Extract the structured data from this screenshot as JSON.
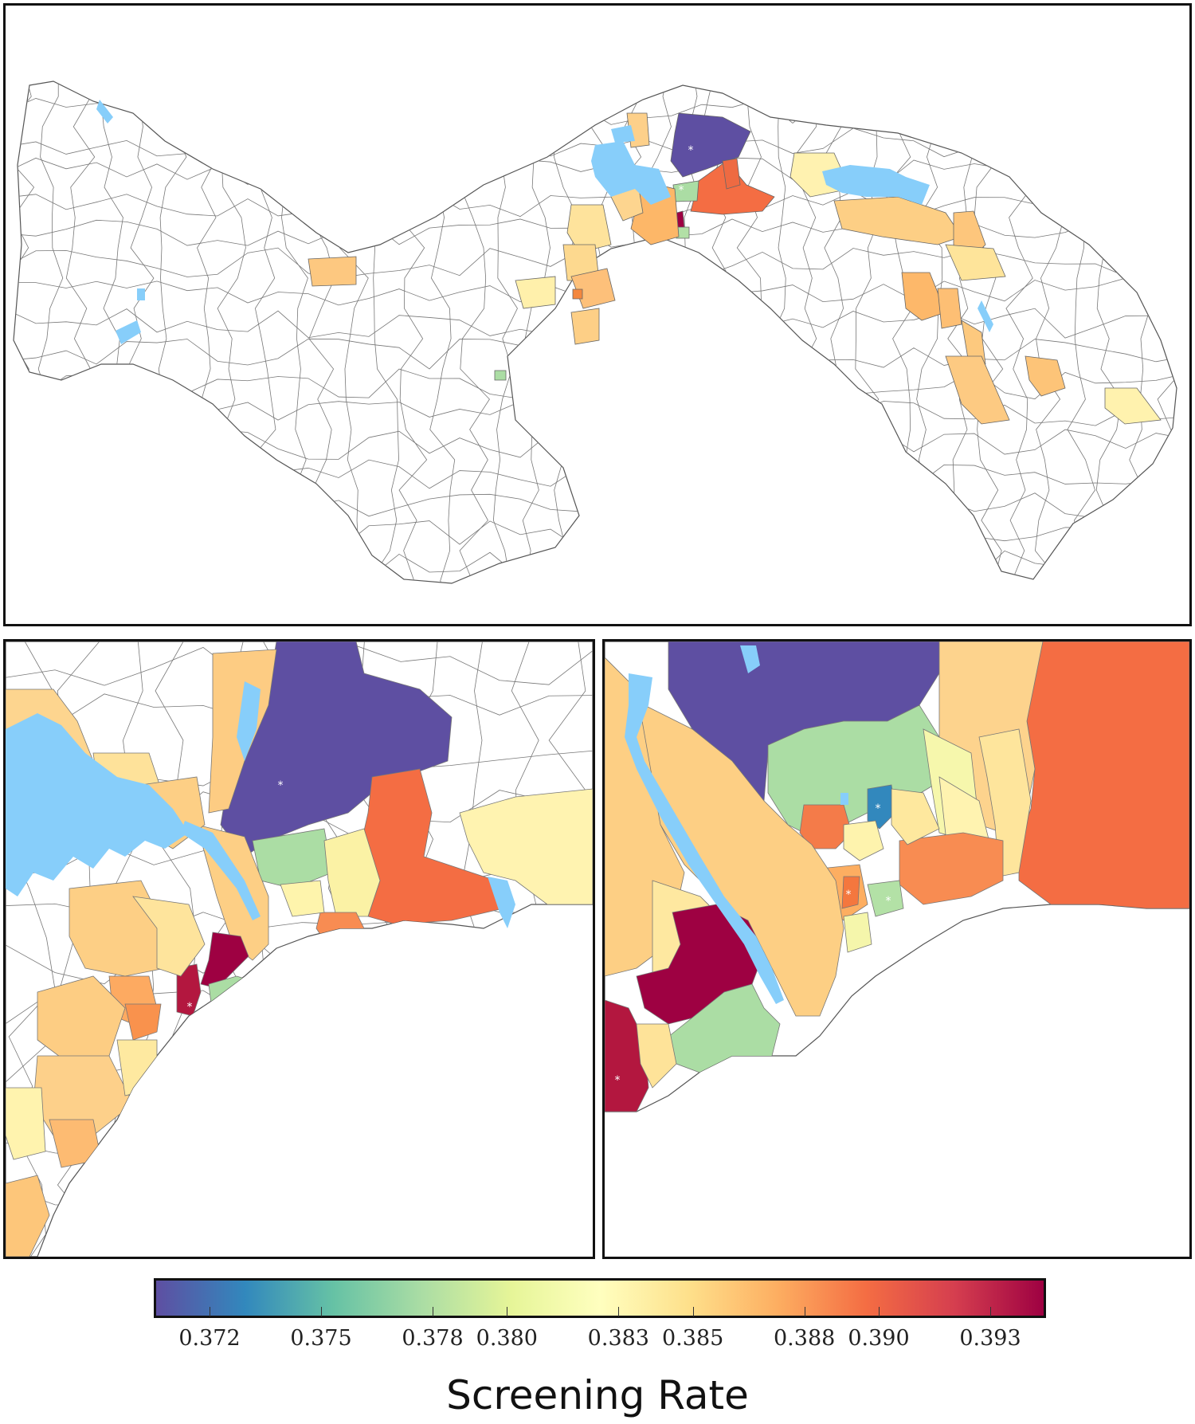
{
  "colorbar": {
    "title": "Screening Rate",
    "min": 0.3705,
    "max": 0.3945,
    "ticks": [
      "0.372",
      "0.375",
      "0.378",
      "0.380",
      "0.383",
      "0.385",
      "0.388",
      "0.390",
      "0.393"
    ],
    "tick_values": [
      0.372,
      0.375,
      0.378,
      0.38,
      0.383,
      0.385,
      0.388,
      0.39,
      0.393
    ],
    "palette": [
      "#5e4fa2",
      "#3288bd",
      "#66c2a5",
      "#abdda4",
      "#e6f598",
      "#ffffbf",
      "#fee08b",
      "#fdae61",
      "#f46d43",
      "#d53e4f",
      "#9e0142"
    ]
  },
  "colors": {
    "water": "#87cefa",
    "outline": "#555555",
    "frame": "#111111",
    "lowest": "#5e4fa2",
    "highest": "#9e0142"
  },
  "panels": [
    {
      "name": "main-map",
      "content": "Panama corregimiento map"
    },
    {
      "name": "zoom-map-1",
      "content": "Canal region zoom"
    },
    {
      "name": "zoom-map-2",
      "content": "Panama City zoom"
    }
  ]
}
